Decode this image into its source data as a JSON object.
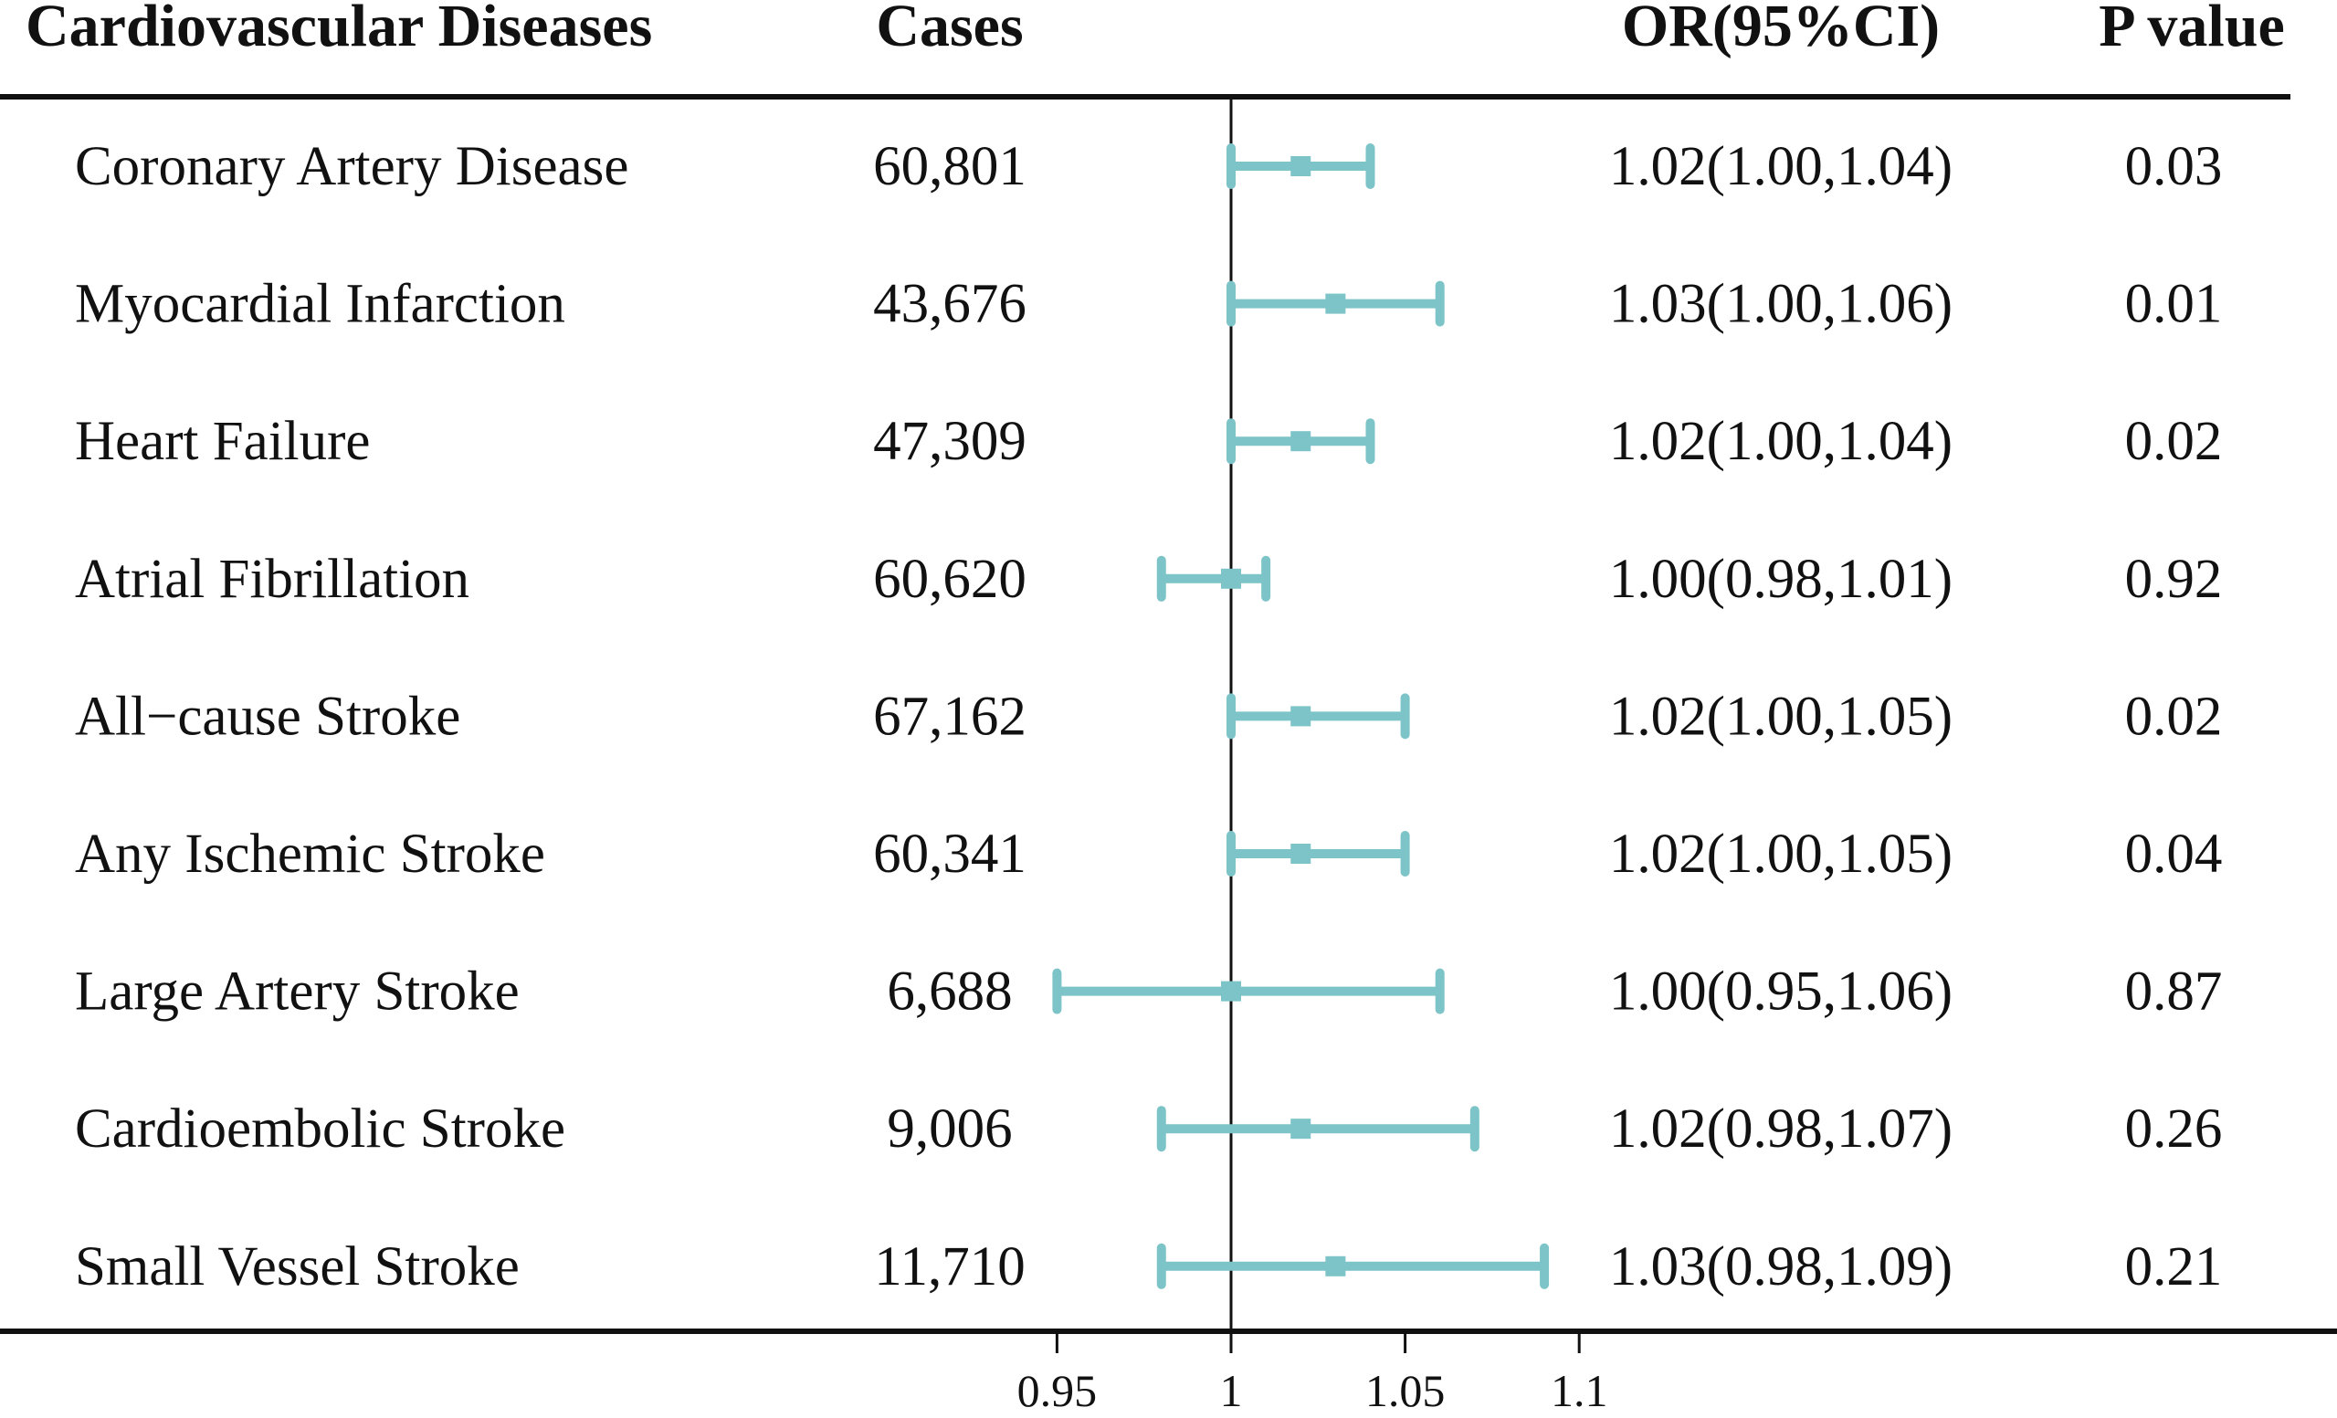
{
  "chart_data": {
    "type": "forest",
    "title": "",
    "headers": {
      "disease": "Cardiovascular Diseases",
      "cases": "Cases",
      "or_ci": "OR(95%CI)",
      "p_value": "P value"
    },
    "rows": [
      {
        "disease": "Coronary Artery Disease",
        "cases": "60,801",
        "or": 1.02,
        "lower": 1.0,
        "upper": 1.04,
        "or_ci": "1.02(1.00,1.04)",
        "p": "0.03"
      },
      {
        "disease": "Myocardial Infarction",
        "cases": "43,676",
        "or": 1.03,
        "lower": 1.0,
        "upper": 1.06,
        "or_ci": "1.03(1.00,1.06)",
        "p": "0.01"
      },
      {
        "disease": "Heart Failure",
        "cases": "47,309",
        "or": 1.02,
        "lower": 1.0,
        "upper": 1.04,
        "or_ci": "1.02(1.00,1.04)",
        "p": "0.02"
      },
      {
        "disease": "Atrial Fibrillation",
        "cases": "60,620",
        "or": 1.0,
        "lower": 0.98,
        "upper": 1.01,
        "or_ci": "1.00(0.98,1.01)",
        "p": "0.92"
      },
      {
        "disease": "All−cause Stroke",
        "cases": "67,162",
        "or": 1.02,
        "lower": 1.0,
        "upper": 1.05,
        "or_ci": "1.02(1.00,1.05)",
        "p": "0.02"
      },
      {
        "disease": "Any Ischemic Stroke",
        "cases": "60,341",
        "or": 1.02,
        "lower": 1.0,
        "upper": 1.05,
        "or_ci": "1.02(1.00,1.05)",
        "p": "0.04"
      },
      {
        "disease": "Large Artery Stroke",
        "cases": "6,688",
        "or": 1.0,
        "lower": 0.95,
        "upper": 1.06,
        "or_ci": "1.00(0.95,1.06)",
        "p": "0.87"
      },
      {
        "disease": "Cardioembolic Stroke",
        "cases": "9,006",
        "or": 1.02,
        "lower": 0.98,
        "upper": 1.07,
        "or_ci": "1.02(0.98,1.07)",
        "p": "0.26"
      },
      {
        "disease": "Small Vessel Stroke",
        "cases": "11,710",
        "or": 1.03,
        "lower": 0.98,
        "upper": 1.09,
        "or_ci": "1.03(0.98,1.09)",
        "p": "0.21"
      }
    ],
    "x_axis": {
      "reference_line": 1,
      "ticks": [
        0.95,
        1,
        1.05,
        1.1
      ],
      "tick_labels": [
        "0.95",
        "1",
        "1.05",
        "1.1"
      ]
    },
    "colors": {
      "ci_color": "#7cc4c8",
      "text_color": "#111111",
      "rule_color": "#111111"
    }
  }
}
